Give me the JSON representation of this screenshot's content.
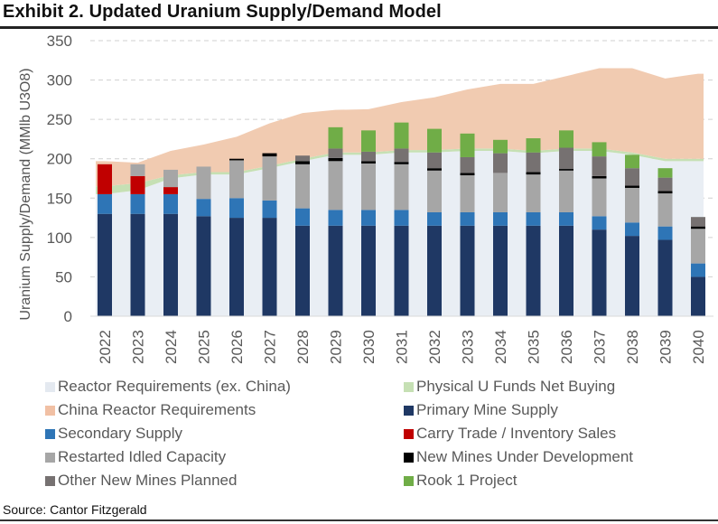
{
  "header": {
    "title": "Exhibit 2. Updated Uranium Supply/Demand Model"
  },
  "footer": {
    "source": "Source: Cantor Fitzgerald"
  },
  "chart_data": {
    "type": "bar",
    "subtype": "stacked bar with stacked area background",
    "title": "Exhibit 2. Updated Uranium Supply/Demand Model",
    "xlabel": "",
    "ylabel": "Uranium Supply/Demand  (MMlb U3O8)",
    "ylim": [
      0,
      350
    ],
    "yticks": [
      0,
      50,
      100,
      150,
      200,
      250,
      300,
      350
    ],
    "grid": true,
    "legend_position": "bottom",
    "categories": [
      "2022",
      "2023",
      "2024",
      "2025",
      "2026",
      "2027",
      "2028",
      "2029",
      "2030",
      "2031",
      "2032",
      "2033",
      "2034",
      "2035",
      "2036",
      "2037",
      "2038",
      "2039",
      "2040"
    ],
    "area_series": [
      {
        "name": "Reactor Requirements (ex. China)",
        "color": "#e9eef4",
        "values": [
          155,
          160,
          175,
          180,
          180,
          188,
          197,
          205,
          205,
          208,
          208,
          210,
          210,
          207,
          210,
          210,
          205,
          197,
          197
        ]
      },
      {
        "name": "Physical U Funds Net Buying",
        "color": "#c6e0b4",
        "values": [
          10,
          9,
          4,
          3,
          3,
          3,
          3,
          3,
          3,
          3,
          3,
          3,
          3,
          3,
          3,
          3,
          3,
          3,
          3
        ]
      },
      {
        "name": "China Reactor Requirements",
        "color": "#f1cbb1",
        "values": [
          32,
          26,
          31,
          35,
          45,
          54,
          58,
          54,
          55,
          61,
          67,
          75,
          82,
          85,
          92,
          102,
          107,
          102,
          108
        ]
      }
    ],
    "bar_series": [
      {
        "name": "Primary Mine Supply",
        "color": "#1f3864",
        "values": [
          130,
          130,
          130,
          127,
          125,
          125,
          115,
          115,
          115,
          115,
          115,
          115,
          115,
          115,
          115,
          110,
          102,
          97,
          50
        ]
      },
      {
        "name": "Secondary Supply",
        "color": "#2e75b6",
        "values": [
          25,
          25,
          25,
          22,
          25,
          22,
          22,
          20,
          20,
          20,
          17,
          17,
          17,
          17,
          17,
          17,
          17,
          17,
          17
        ]
      },
      {
        "name": "Carry Trade / Inventory Sales",
        "color": "#c00000",
        "values": [
          38,
          23,
          9,
          0,
          0,
          0,
          0,
          0,
          0,
          0,
          0,
          0,
          0,
          0,
          0,
          0,
          0,
          0,
          0
        ]
      },
      {
        "name": "Restarted Idled Capacity",
        "color": "#a6a6a6",
        "values": [
          0,
          15,
          22,
          41,
          48,
          56,
          56,
          62,
          59,
          58,
          53,
          47,
          50,
          48,
          53,
          48,
          44,
          42,
          44
        ]
      },
      {
        "name": "New Mines Under Development",
        "color": "#000000",
        "values": [
          0,
          0,
          0,
          0,
          2,
          4,
          4,
          4,
          3,
          3,
          3,
          3,
          0,
          3,
          2,
          3,
          3,
          3,
          3
        ]
      },
      {
        "name": "Other New Mines Planned",
        "color": "#767171",
        "values": [
          0,
          0,
          0,
          0,
          0,
          0,
          7,
          12,
          12,
          17,
          20,
          20,
          25,
          25,
          27,
          25,
          22,
          17,
          12
        ]
      },
      {
        "name": "Rook 1 Project",
        "color": "#70ad47",
        "values": [
          0,
          0,
          0,
          0,
          0,
          0,
          0,
          27,
          27,
          33,
          30,
          30,
          17,
          18,
          22,
          18,
          17,
          12,
          0
        ]
      }
    ],
    "legend": [
      "Reactor Requirements (ex. China)",
      "Physical U Funds Net Buying",
      "China Reactor Requirements",
      "Primary Mine Supply",
      "Secondary Supply",
      "Carry Trade / Inventory Sales",
      "Restarted Idled Capacity",
      "New Mines Under Development",
      "Other New Mines Planned",
      "Rook 1 Project"
    ]
  },
  "legend_items": [
    {
      "label": "Reactor Requirements (ex. China)",
      "color": "#e4e9f0"
    },
    {
      "label": "Physical U Funds Net Buying",
      "color": "#c6e0b4"
    },
    {
      "label": "China Reactor Requirements",
      "color": "#f1c0a4"
    },
    {
      "label": "Primary Mine Supply",
      "color": "#1f3864"
    },
    {
      "label": "Secondary Supply",
      "color": "#2e75b6"
    },
    {
      "label": "Carry Trade / Inventory Sales",
      "color": "#c00000"
    },
    {
      "label": "Restarted Idled Capacity",
      "color": "#a6a6a6"
    },
    {
      "label": "New Mines Under Development",
      "color": "#000000"
    },
    {
      "label": "Other New Mines Planned",
      "color": "#767171"
    },
    {
      "label": "Rook 1 Project",
      "color": "#70ad47"
    }
  ]
}
